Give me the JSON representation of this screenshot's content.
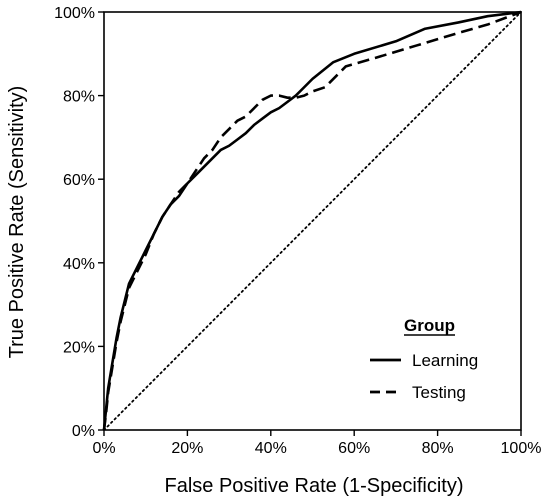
{
  "chart_data": {
    "type": "line",
    "title": "",
    "xlabel": "False Positive Rate (1-Specificity)",
    "ylabel": "True Positive Rate (Sensitivity)",
    "xlim": [
      0,
      100
    ],
    "ylim": [
      0,
      100
    ],
    "x_ticks": [
      "0%",
      "20%",
      "40%",
      "60%",
      "80%",
      "100%"
    ],
    "y_ticks": [
      "0%",
      "20%",
      "40%",
      "60%",
      "80%",
      "100%"
    ],
    "grid": false,
    "legend": {
      "title": "Group",
      "placement": "bottom-right",
      "entries": [
        "Learning",
        "Testing"
      ]
    },
    "series": [
      {
        "name": "Learning",
        "line_style": "solid",
        "x": [
          0,
          0.5,
          1,
          2,
          3,
          4,
          5,
          6,
          8,
          10,
          12,
          14,
          16,
          18,
          20,
          22,
          24,
          26,
          28,
          30,
          32,
          34,
          36,
          38,
          40,
          42,
          44,
          46,
          48,
          50,
          55,
          60,
          70,
          77,
          85,
          92,
          100
        ],
        "y": [
          0,
          5,
          10,
          16,
          22,
          27,
          31,
          35,
          39,
          43,
          47,
          51,
          54,
          56,
          59,
          61,
          63,
          65,
          67,
          68,
          69.5,
          71,
          73,
          74.5,
          76,
          77,
          78.5,
          80,
          82,
          84,
          88,
          90,
          93,
          96,
          97.5,
          99,
          100
        ]
      },
      {
        "name": "Testing",
        "line_style": "dashed",
        "x": [
          0,
          0.5,
          1,
          2,
          3,
          4,
          5,
          6,
          8,
          10,
          12,
          14,
          16,
          18,
          20,
          22,
          24,
          26,
          28,
          30,
          32,
          34,
          36,
          38,
          40,
          42,
          44,
          46,
          48,
          50,
          53,
          56,
          58,
          65,
          75,
          85,
          92,
          100
        ],
        "y": [
          0,
          4,
          9,
          15,
          21,
          26,
          30,
          34,
          38,
          42,
          47,
          51,
          54,
          57,
          59,
          62,
          65,
          67,
          70,
          72,
          74,
          75,
          77,
          79,
          80,
          80,
          79.5,
          79.5,
          80,
          81,
          82,
          85,
          87,
          89,
          92,
          95,
          97,
          100
        ]
      },
      {
        "name": "",
        "line_style": "dotted",
        "x": [
          0,
          100
        ],
        "y": [
          0,
          100
        ]
      }
    ]
  }
}
